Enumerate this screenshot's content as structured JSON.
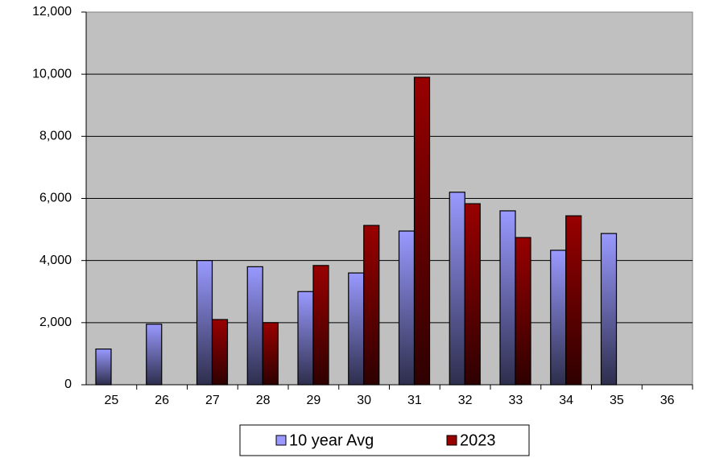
{
  "chart_data": {
    "type": "bar",
    "categories": [
      "25",
      "26",
      "27",
      "28",
      "29",
      "30",
      "31",
      "32",
      "33",
      "34",
      "35",
      "36"
    ],
    "series": [
      {
        "name": "10 year Avg",
        "color": "#9999ff",
        "values": [
          1150,
          1950,
          4000,
          3800,
          3000,
          3600,
          4950,
          6200,
          5600,
          4330,
          4870,
          null
        ]
      },
      {
        "name": "2023",
        "color": "#990000",
        "values": [
          null,
          null,
          2100,
          2000,
          3840,
          5130,
          9900,
          5830,
          4740,
          5440,
          null,
          null
        ]
      }
    ],
    "ylim": [
      0,
      12000
    ],
    "yticks": [
      0,
      {
        "value": 2000,
        "label": "2,000"
      },
      {
        "value": 4000,
        "label": "4,000"
      },
      {
        "value": 6000,
        "label": "6,000"
      },
      {
        "value": 8000,
        "label": "8,000"
      },
      {
        "value": 10000,
        "label": "10,000"
      },
      {
        "value": 12000,
        "label": "12,000"
      }
    ],
    "grid": true,
    "legend": "bottom"
  }
}
